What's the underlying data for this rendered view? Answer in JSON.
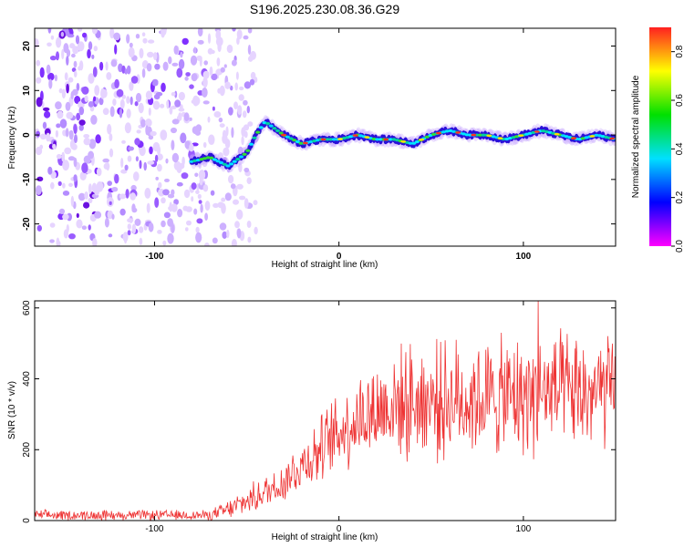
{
  "title": "S196.2025.230.08.36.G29",
  "chart_data": [
    {
      "type": "heatmap",
      "panel": "spectrogram",
      "xlabel": "Height of straight line (km)",
      "ylabel": "Frequency (Hz)",
      "xlim": [
        -165,
        150
      ],
      "ylim": [
        -25,
        24
      ],
      "xticks": [
        -100,
        0,
        100
      ],
      "xtick_labels": [
        "-100",
        "0",
        "100"
      ],
      "yticks": [
        -20,
        -10,
        0,
        10,
        20
      ],
      "ytick_labels": [
        "-20",
        "-10",
        "0",
        "10",
        "20"
      ],
      "colorbar": {
        "label": "Normalized spectral amplitude",
        "range": [
          0.0,
          0.9
        ],
        "ticks": [
          0.0,
          0.2,
          0.4,
          0.6,
          0.8
        ],
        "tick_labels": [
          "0.0",
          "0.2",
          "0.4",
          "0.6",
          "0.8"
        ],
        "stops": [
          "#ff2020",
          "#ffff00",
          "#00e000",
          "#00e0ff",
          "#0000ff",
          "#ff00ff"
        ]
      },
      "noise_region_x": [
        -165,
        -45
      ],
      "signal_track": {
        "x": [
          -80,
          -70,
          -60,
          -50,
          -45,
          -40,
          -30,
          -20,
          -10,
          0,
          10,
          20,
          30,
          40,
          50,
          60,
          70,
          80,
          90,
          100,
          110,
          120,
          130,
          140,
          150
        ],
        "y": [
          -6,
          -5,
          -7,
          -4,
          0,
          3,
          0,
          -2,
          -1,
          -1,
          0,
          -1,
          -1,
          -2,
          0,
          1,
          0,
          0,
          -1,
          0,
          1,
          0,
          -1,
          0,
          -1
        ]
      }
    },
    {
      "type": "line",
      "panel": "snr",
      "xlabel": "Height of straight line (km)",
      "ylabel": "SNR (10 * v/v)",
      "xlim": [
        -165,
        150
      ],
      "ylim": [
        0,
        620
      ],
      "xticks": [
        -100,
        0,
        100
      ],
      "xtick_labels": [
        "-100",
        "0",
        "100"
      ],
      "yticks": [
        0,
        200,
        400,
        600
      ],
      "ytick_labels": [
        "0",
        "200",
        "400",
        "600"
      ],
      "color": "#ee3333",
      "trend": {
        "x": [
          -165,
          -70,
          -60,
          -50,
          -40,
          -30,
          -20,
          -10,
          0,
          10,
          20,
          30,
          40,
          60,
          80,
          100,
          110,
          130,
          150
        ],
        "y": [
          15,
          15,
          30,
          55,
          80,
          110,
          160,
          200,
          250,
          290,
          310,
          330,
          335,
          340,
          345,
          350,
          360,
          355,
          360
        ]
      },
      "spread": {
        "x": [
          -165,
          -70,
          -60,
          -40,
          -20,
          0,
          20,
          40,
          60,
          80,
          100,
          120,
          150
        ],
        "y": [
          15,
          15,
          30,
          50,
          80,
          120,
          150,
          170,
          175,
          175,
          180,
          180,
          170
        ]
      },
      "peak": {
        "x": 108,
        "y": 620
      },
      "samples": 900
    }
  ]
}
